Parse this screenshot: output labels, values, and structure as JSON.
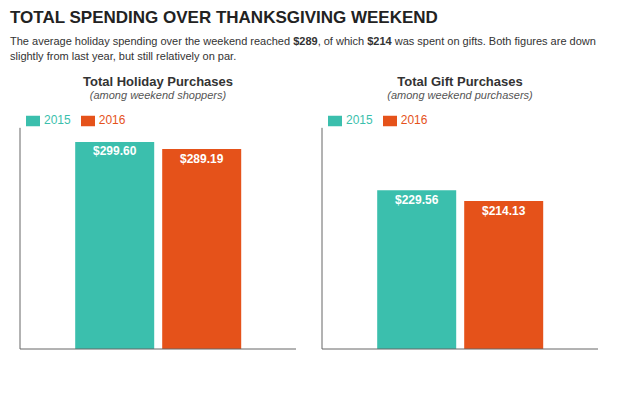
{
  "title": "TOTAL SPENDING OVER THANKSGIVING WEEKEND",
  "subtitle": "The average holiday spending over the weekend reached $289, of which $214 was spent on gifts. Both figures are down slightly from last year, but still relatively on par.",
  "chart_data": [
    {
      "type": "bar",
      "title": "Total Holiday Purchases",
      "subtitle": "(among weekend shoppers)",
      "categories": [
        null
      ],
      "series": [
        {
          "name": "2015",
          "color": "#3bbfad",
          "values": [
            299.6
          ],
          "value_labels": [
            "$299.60"
          ]
        },
        {
          "name": "2016",
          "color": "#e5521a",
          "values": [
            289.19
          ],
          "value_labels": [
            "$289.19"
          ]
        }
      ],
      "ylim": [
        0,
        320
      ],
      "data_labels": true,
      "tick_labels": false,
      "legend": "upper left",
      "grid": false
    },
    {
      "type": "bar",
      "title": "Total Gift Purchases",
      "subtitle": "(among weekend purchasers)",
      "categories": [
        null
      ],
      "series": [
        {
          "name": "2015",
          "color": "#3bbfad",
          "values": [
            229.56
          ],
          "value_labels": [
            "$229.56"
          ]
        },
        {
          "name": "2016",
          "color": "#e5521a",
          "values": [
            214.13
          ],
          "value_labels": [
            "$214.13"
          ]
        }
      ],
      "ylim": [
        0,
        320
      ],
      "data_labels": true,
      "tick_labels": false,
      "legend": "upper left",
      "grid": false
    }
  ]
}
